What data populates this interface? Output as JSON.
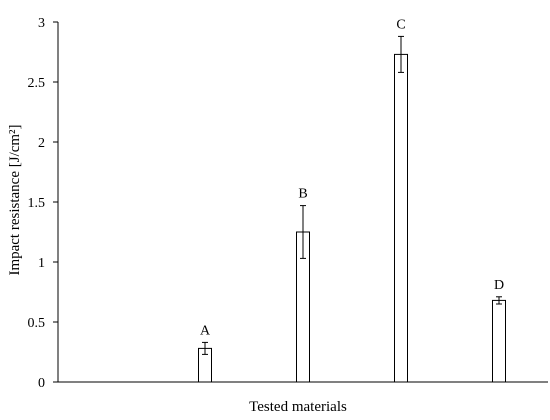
{
  "chart_data": {
    "type": "bar",
    "categories": [
      "",
      "A",
      "B",
      "C",
      "D"
    ],
    "values": [
      null,
      0.28,
      1.25,
      2.73,
      0.68
    ],
    "errors": [
      null,
      0.05,
      0.22,
      0.15,
      0.03
    ],
    "bar_labels": [
      "",
      "A",
      "B",
      "C",
      "D"
    ],
    "xlabel": "Tested materials",
    "ylabel": "Impact resistance  [J/cm²]",
    "ylim": [
      0,
      3
    ],
    "yticks": [
      "0",
      "0.5",
      "1",
      "1.5",
      "2",
      "2.5",
      "3"
    ],
    "grid": false,
    "legend": "none",
    "bar_fill": "#ffffff",
    "bar_stroke": "#000000"
  }
}
